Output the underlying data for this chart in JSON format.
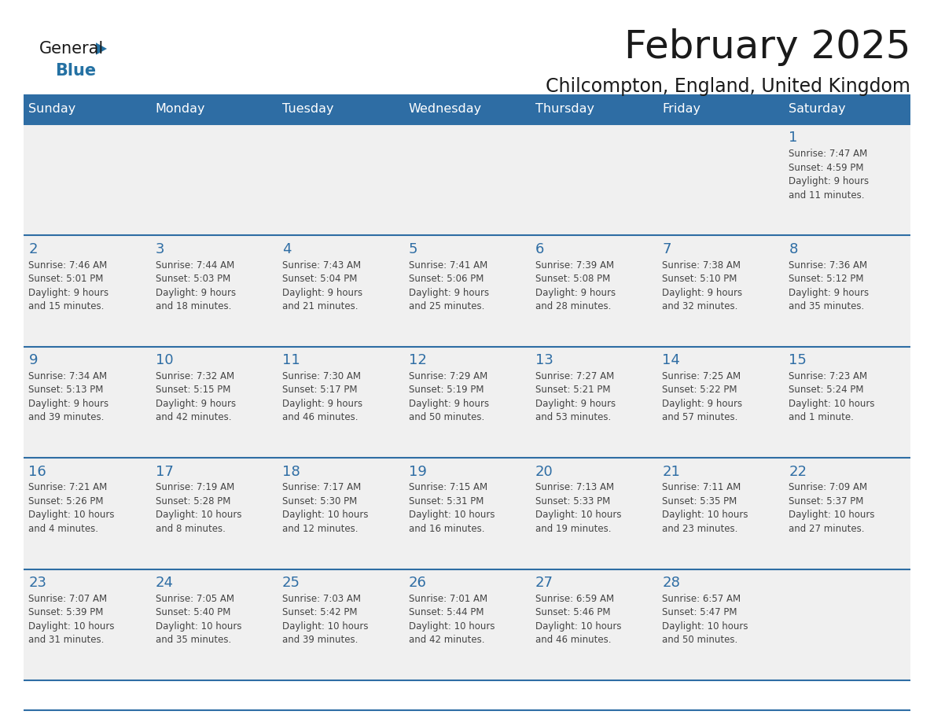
{
  "title": "February 2025",
  "subtitle": "Chilcompton, England, United Kingdom",
  "days_of_week": [
    "Sunday",
    "Monday",
    "Tuesday",
    "Wednesday",
    "Thursday",
    "Friday",
    "Saturday"
  ],
  "header_bg": "#2E6DA4",
  "header_text": "#FFFFFF",
  "cell_bg": "#F0F0F0",
  "day_num_color": "#2E6DA4",
  "text_color": "#444444",
  "line_color": "#2E6DA4",
  "border_color": "#2E6DA4",
  "logo_dark_color": "#1a1a1a",
  "logo_blue_color": "#2471A3",
  "calendar_data": [
    [
      {
        "day": null,
        "info": null
      },
      {
        "day": null,
        "info": null
      },
      {
        "day": null,
        "info": null
      },
      {
        "day": null,
        "info": null
      },
      {
        "day": null,
        "info": null
      },
      {
        "day": null,
        "info": null
      },
      {
        "day": 1,
        "info": "Sunrise: 7:47 AM\nSunset: 4:59 PM\nDaylight: 9 hours\nand 11 minutes."
      }
    ],
    [
      {
        "day": 2,
        "info": "Sunrise: 7:46 AM\nSunset: 5:01 PM\nDaylight: 9 hours\nand 15 minutes."
      },
      {
        "day": 3,
        "info": "Sunrise: 7:44 AM\nSunset: 5:03 PM\nDaylight: 9 hours\nand 18 minutes."
      },
      {
        "day": 4,
        "info": "Sunrise: 7:43 AM\nSunset: 5:04 PM\nDaylight: 9 hours\nand 21 minutes."
      },
      {
        "day": 5,
        "info": "Sunrise: 7:41 AM\nSunset: 5:06 PM\nDaylight: 9 hours\nand 25 minutes."
      },
      {
        "day": 6,
        "info": "Sunrise: 7:39 AM\nSunset: 5:08 PM\nDaylight: 9 hours\nand 28 minutes."
      },
      {
        "day": 7,
        "info": "Sunrise: 7:38 AM\nSunset: 5:10 PM\nDaylight: 9 hours\nand 32 minutes."
      },
      {
        "day": 8,
        "info": "Sunrise: 7:36 AM\nSunset: 5:12 PM\nDaylight: 9 hours\nand 35 minutes."
      }
    ],
    [
      {
        "day": 9,
        "info": "Sunrise: 7:34 AM\nSunset: 5:13 PM\nDaylight: 9 hours\nand 39 minutes."
      },
      {
        "day": 10,
        "info": "Sunrise: 7:32 AM\nSunset: 5:15 PM\nDaylight: 9 hours\nand 42 minutes."
      },
      {
        "day": 11,
        "info": "Sunrise: 7:30 AM\nSunset: 5:17 PM\nDaylight: 9 hours\nand 46 minutes."
      },
      {
        "day": 12,
        "info": "Sunrise: 7:29 AM\nSunset: 5:19 PM\nDaylight: 9 hours\nand 50 minutes."
      },
      {
        "day": 13,
        "info": "Sunrise: 7:27 AM\nSunset: 5:21 PM\nDaylight: 9 hours\nand 53 minutes."
      },
      {
        "day": 14,
        "info": "Sunrise: 7:25 AM\nSunset: 5:22 PM\nDaylight: 9 hours\nand 57 minutes."
      },
      {
        "day": 15,
        "info": "Sunrise: 7:23 AM\nSunset: 5:24 PM\nDaylight: 10 hours\nand 1 minute."
      }
    ],
    [
      {
        "day": 16,
        "info": "Sunrise: 7:21 AM\nSunset: 5:26 PM\nDaylight: 10 hours\nand 4 minutes."
      },
      {
        "day": 17,
        "info": "Sunrise: 7:19 AM\nSunset: 5:28 PM\nDaylight: 10 hours\nand 8 minutes."
      },
      {
        "day": 18,
        "info": "Sunrise: 7:17 AM\nSunset: 5:30 PM\nDaylight: 10 hours\nand 12 minutes."
      },
      {
        "day": 19,
        "info": "Sunrise: 7:15 AM\nSunset: 5:31 PM\nDaylight: 10 hours\nand 16 minutes."
      },
      {
        "day": 20,
        "info": "Sunrise: 7:13 AM\nSunset: 5:33 PM\nDaylight: 10 hours\nand 19 minutes."
      },
      {
        "day": 21,
        "info": "Sunrise: 7:11 AM\nSunset: 5:35 PM\nDaylight: 10 hours\nand 23 minutes."
      },
      {
        "day": 22,
        "info": "Sunrise: 7:09 AM\nSunset: 5:37 PM\nDaylight: 10 hours\nand 27 minutes."
      }
    ],
    [
      {
        "day": 23,
        "info": "Sunrise: 7:07 AM\nSunset: 5:39 PM\nDaylight: 10 hours\nand 31 minutes."
      },
      {
        "day": 24,
        "info": "Sunrise: 7:05 AM\nSunset: 5:40 PM\nDaylight: 10 hours\nand 35 minutes."
      },
      {
        "day": 25,
        "info": "Sunrise: 7:03 AM\nSunset: 5:42 PM\nDaylight: 10 hours\nand 39 minutes."
      },
      {
        "day": 26,
        "info": "Sunrise: 7:01 AM\nSunset: 5:44 PM\nDaylight: 10 hours\nand 42 minutes."
      },
      {
        "day": 27,
        "info": "Sunrise: 6:59 AM\nSunset: 5:46 PM\nDaylight: 10 hours\nand 46 minutes."
      },
      {
        "day": 28,
        "info": "Sunrise: 6:57 AM\nSunset: 5:47 PM\nDaylight: 10 hours\nand 50 minutes."
      },
      {
        "day": null,
        "info": null
      }
    ]
  ]
}
